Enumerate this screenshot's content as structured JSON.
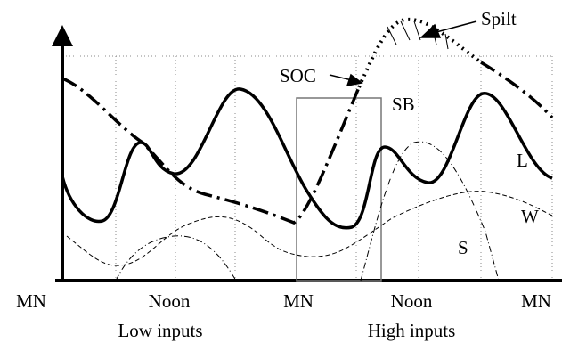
{
  "x_labels": [
    "MN",
    "Noon",
    "MN",
    "Noon",
    "MN"
  ],
  "groups": [
    "Low inputs",
    "High inputs"
  ],
  "curve_labels": {
    "soc": "SOC",
    "sb": "SB",
    "spilt": "Spilt",
    "l": "L",
    "w": "W",
    "s": "S"
  }
}
